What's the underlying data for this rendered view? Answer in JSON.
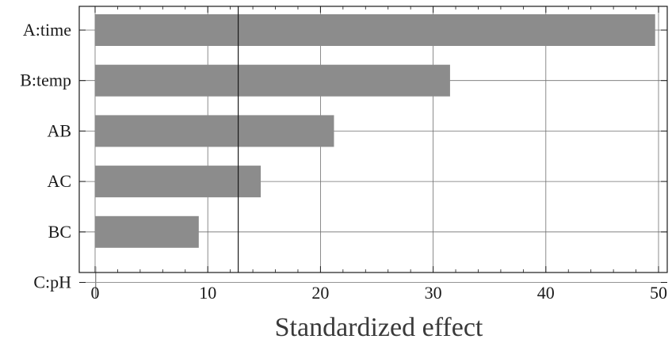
{
  "chart_data": {
    "type": "bar",
    "orientation": "horizontal",
    "categories": [
      "A:time",
      "B:temp",
      "AB",
      "AC",
      "BC",
      "C:pH"
    ],
    "values": [
      49.7,
      31.5,
      21.2,
      14.7,
      9.2,
      0.1
    ],
    "title": "",
    "xlabel": "Standardized effect",
    "ylabel": "",
    "xlim": [
      0,
      50
    ],
    "xticks": [
      "0",
      "10",
      "20",
      "30",
      "40",
      "50"
    ],
    "reference_line": 12.7,
    "grid": true,
    "colors": {
      "bar": "#8c8c8c",
      "grid": "#707070",
      "reference_line": "#1a1a1a",
      "frame": "#1a1a1a"
    }
  }
}
